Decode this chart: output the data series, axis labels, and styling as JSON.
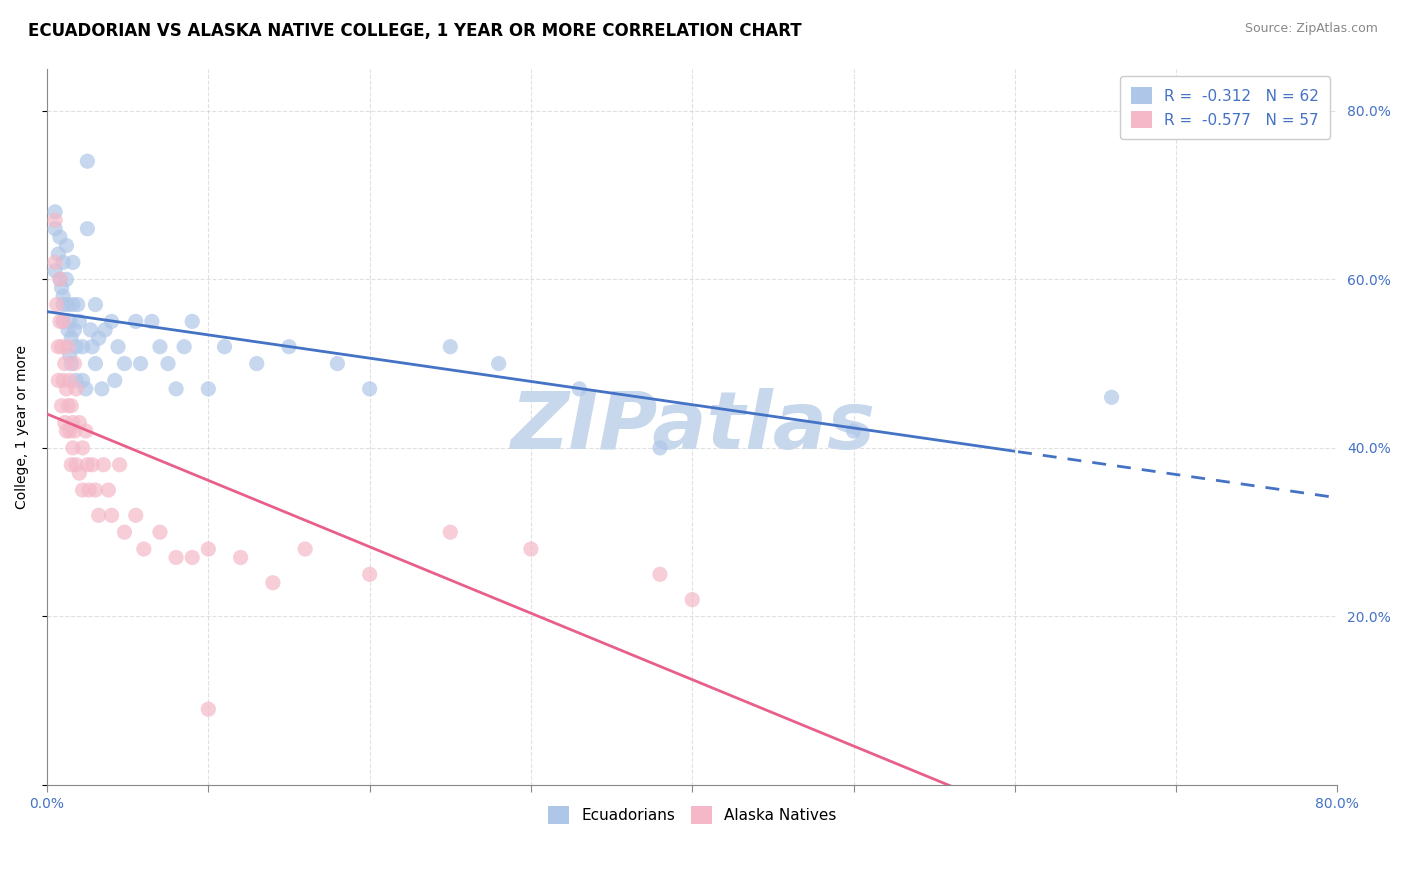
{
  "title": "ECUADORIAN VS ALASKA NATIVE COLLEGE, 1 YEAR OR MORE CORRELATION CHART",
  "source": "Source: ZipAtlas.com",
  "ylabel": "College, 1 year or more",
  "legend1_label": "R =  -0.312   N = 62",
  "legend2_label": "R =  -0.577   N = 57",
  "legend1_color": "#aec6e8",
  "legend2_color": "#f4b8c8",
  "scatter_blue_color": "#aec6e8",
  "scatter_pink_color": "#f4b8c8",
  "line_blue_color": "#4472c4",
  "line_pink_color": "#e8608a",
  "watermark": "ZIPatlas",
  "ecuadorians": [
    [
      0.005,
      0.66
    ],
    [
      0.005,
      0.68
    ],
    [
      0.005,
      0.61
    ],
    [
      0.007,
      0.63
    ],
    [
      0.008,
      0.65
    ],
    [
      0.008,
      0.6
    ],
    [
      0.009,
      0.59
    ],
    [
      0.01,
      0.62
    ],
    [
      0.01,
      0.57
    ],
    [
      0.01,
      0.55
    ],
    [
      0.01,
      0.58
    ],
    [
      0.012,
      0.64
    ],
    [
      0.012,
      0.6
    ],
    [
      0.013,
      0.57
    ],
    [
      0.013,
      0.54
    ],
    [
      0.014,
      0.51
    ],
    [
      0.014,
      0.55
    ],
    [
      0.015,
      0.5
    ],
    [
      0.015,
      0.53
    ],
    [
      0.016,
      0.62
    ],
    [
      0.016,
      0.57
    ],
    [
      0.017,
      0.54
    ],
    [
      0.018,
      0.52
    ],
    [
      0.018,
      0.48
    ],
    [
      0.019,
      0.57
    ],
    [
      0.02,
      0.55
    ],
    [
      0.022,
      0.52
    ],
    [
      0.022,
      0.48
    ],
    [
      0.024,
      0.47
    ],
    [
      0.025,
      0.74
    ],
    [
      0.025,
      0.66
    ],
    [
      0.027,
      0.54
    ],
    [
      0.028,
      0.52
    ],
    [
      0.03,
      0.5
    ],
    [
      0.03,
      0.57
    ],
    [
      0.032,
      0.53
    ],
    [
      0.034,
      0.47
    ],
    [
      0.036,
      0.54
    ],
    [
      0.04,
      0.55
    ],
    [
      0.042,
      0.48
    ],
    [
      0.044,
      0.52
    ],
    [
      0.048,
      0.5
    ],
    [
      0.055,
      0.55
    ],
    [
      0.058,
      0.5
    ],
    [
      0.065,
      0.55
    ],
    [
      0.07,
      0.52
    ],
    [
      0.075,
      0.5
    ],
    [
      0.08,
      0.47
    ],
    [
      0.085,
      0.52
    ],
    [
      0.09,
      0.55
    ],
    [
      0.1,
      0.47
    ],
    [
      0.11,
      0.52
    ],
    [
      0.13,
      0.5
    ],
    [
      0.15,
      0.52
    ],
    [
      0.18,
      0.5
    ],
    [
      0.2,
      0.47
    ],
    [
      0.25,
      0.52
    ],
    [
      0.28,
      0.5
    ],
    [
      0.33,
      0.47
    ],
    [
      0.38,
      0.4
    ],
    [
      0.5,
      0.42
    ],
    [
      0.66,
      0.46
    ]
  ],
  "alaska_natives": [
    [
      0.005,
      0.62
    ],
    [
      0.005,
      0.67
    ],
    [
      0.006,
      0.57
    ],
    [
      0.007,
      0.52
    ],
    [
      0.007,
      0.48
    ],
    [
      0.008,
      0.55
    ],
    [
      0.008,
      0.6
    ],
    [
      0.009,
      0.52
    ],
    [
      0.009,
      0.45
    ],
    [
      0.01,
      0.55
    ],
    [
      0.01,
      0.48
    ],
    [
      0.011,
      0.43
    ],
    [
      0.011,
      0.5
    ],
    [
      0.012,
      0.47
    ],
    [
      0.012,
      0.42
    ],
    [
      0.013,
      0.52
    ],
    [
      0.013,
      0.45
    ],
    [
      0.014,
      0.48
    ],
    [
      0.014,
      0.42
    ],
    [
      0.015,
      0.45
    ],
    [
      0.015,
      0.38
    ],
    [
      0.016,
      0.43
    ],
    [
      0.016,
      0.4
    ],
    [
      0.017,
      0.5
    ],
    [
      0.017,
      0.42
    ],
    [
      0.018,
      0.47
    ],
    [
      0.018,
      0.38
    ],
    [
      0.02,
      0.43
    ],
    [
      0.02,
      0.37
    ],
    [
      0.022,
      0.4
    ],
    [
      0.022,
      0.35
    ],
    [
      0.024,
      0.42
    ],
    [
      0.025,
      0.38
    ],
    [
      0.026,
      0.35
    ],
    [
      0.028,
      0.38
    ],
    [
      0.03,
      0.35
    ],
    [
      0.032,
      0.32
    ],
    [
      0.035,
      0.38
    ],
    [
      0.038,
      0.35
    ],
    [
      0.04,
      0.32
    ],
    [
      0.045,
      0.38
    ],
    [
      0.048,
      0.3
    ],
    [
      0.055,
      0.32
    ],
    [
      0.06,
      0.28
    ],
    [
      0.07,
      0.3
    ],
    [
      0.08,
      0.27
    ],
    [
      0.09,
      0.27
    ],
    [
      0.1,
      0.28
    ],
    [
      0.12,
      0.27
    ],
    [
      0.14,
      0.24
    ],
    [
      0.16,
      0.28
    ],
    [
      0.2,
      0.25
    ],
    [
      0.25,
      0.3
    ],
    [
      0.3,
      0.28
    ],
    [
      0.38,
      0.25
    ],
    [
      0.4,
      0.22
    ],
    [
      0.1,
      0.09
    ]
  ],
  "xmin": 0.0,
  "xmax": 0.8,
  "ymin": 0.0,
  "ymax": 0.85,
  "grid_color": "#cccccc",
  "bg_color": "#ffffff",
  "title_fontsize": 12,
  "axis_label_fontsize": 10,
  "tick_fontsize": 10,
  "source_fontsize": 9,
  "watermark_color": "#c8d8ec",
  "watermark_fontsize": 58
}
